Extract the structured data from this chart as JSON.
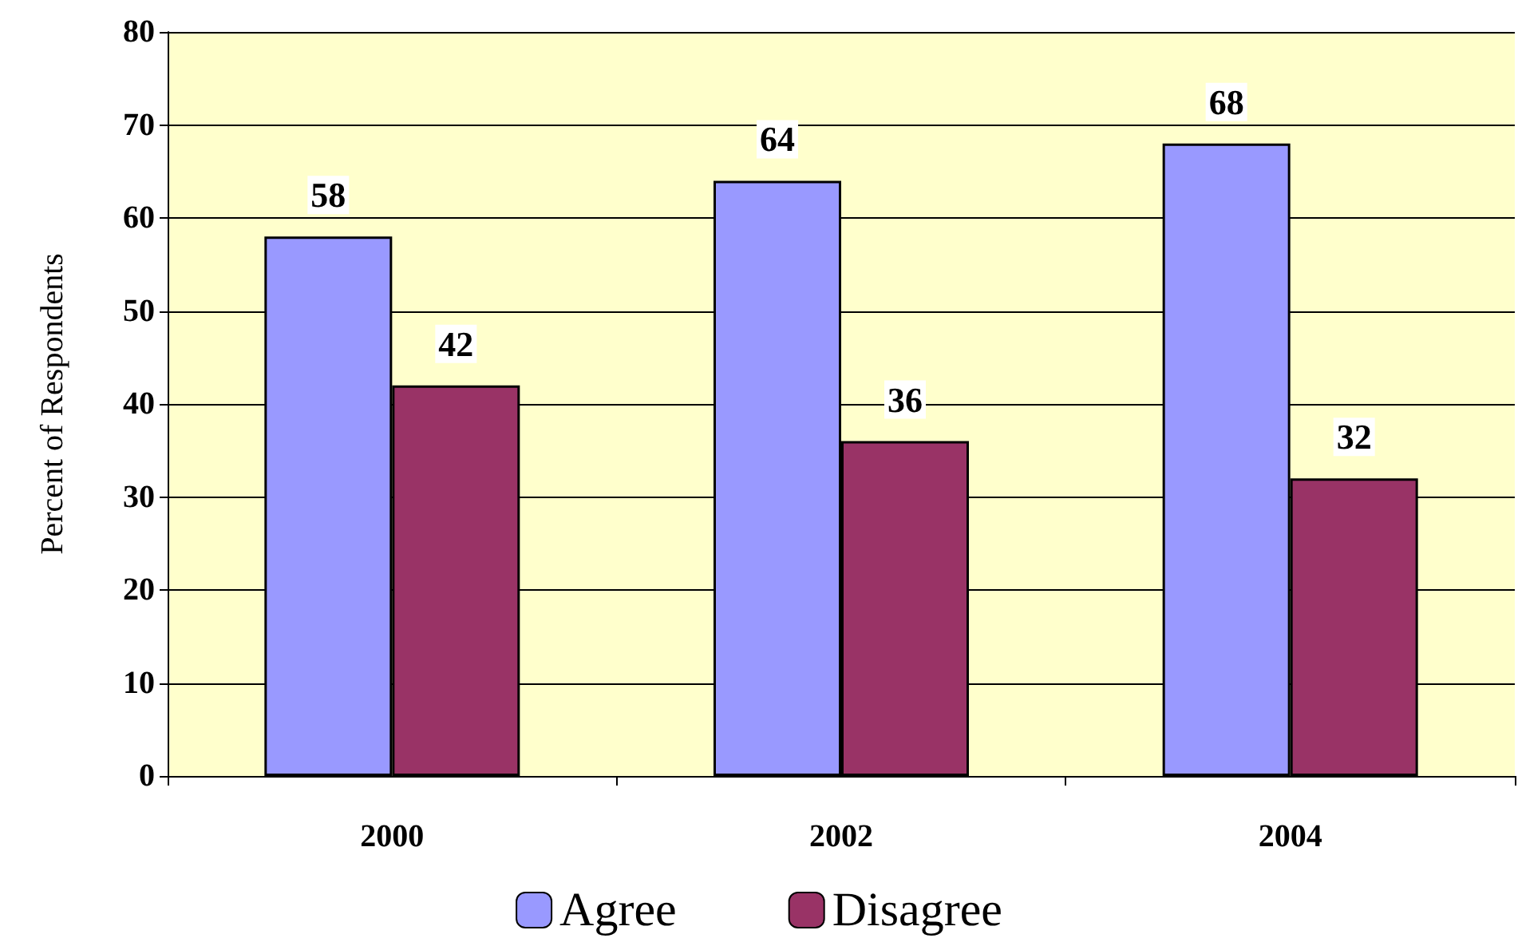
{
  "chart_data": {
    "type": "bar",
    "ylabel": "Percent of Respondents",
    "categories": [
      "2000",
      "2002",
      "2004"
    ],
    "series": [
      {
        "name": "Agree",
        "color": "#9999ff",
        "values": [
          58,
          64,
          68
        ]
      },
      {
        "name": "Disagree",
        "color": "#993366",
        "values": [
          42,
          36,
          32
        ]
      }
    ],
    "ylim": [
      0,
      80
    ],
    "yticks": [
      0,
      10,
      20,
      30,
      40,
      50,
      60,
      70,
      80
    ],
    "grid": "y",
    "legend": "bottom",
    "data_labels": true
  }
}
